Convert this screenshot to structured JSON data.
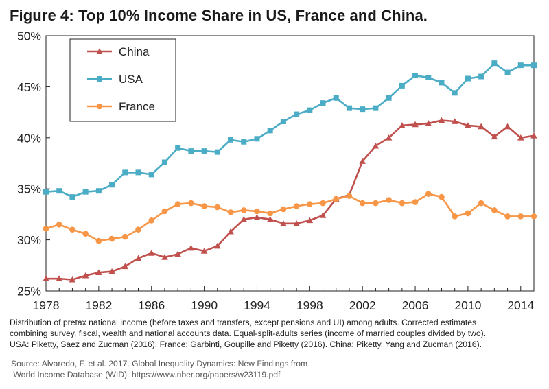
{
  "figure_title": "Figure 4: Top 10% Income Share in US, France and China.",
  "caption_lines": [
    "Distribution of pretax national income (before taxes and transfers, except pensions and UI) among adults. Corrected estimates",
    "combining survey, fiscal, wealth and national accounts data. Equal-split-adults series (income of married couples divided by two).",
    "USA: Piketty, Saez and Zucman (2016). France: Garbinti, Goupille and Piketty (2016). China: Piketty, Yang and Zucman (2016)."
  ],
  "source_lines": [
    "Source: Alvaredo, F. et al. 2017. Global Inequality Dynamics: New Findings from",
    " World Income Database (WID). https://www.nber.org/papers/w23119.pdf"
  ],
  "chart_data": {
    "type": "line",
    "title": "Figure 4: Top 10% Income Share in US, France and China.",
    "xlabel": "",
    "ylabel": "",
    "xlim": [
      1978,
      2015
    ],
    "ylim": [
      25,
      50
    ],
    "x_ticks": [
      1978,
      1982,
      1986,
      1990,
      1994,
      1998,
      2002,
      2006,
      2010,
      2014
    ],
    "y_ticks": [
      25,
      30,
      35,
      40,
      45,
      50
    ],
    "y_tick_labels": [
      "25%",
      "30%",
      "35%",
      "40%",
      "45%",
      "50%"
    ],
    "grid": false,
    "legend_position": "top-left",
    "x": [
      1978,
      1979,
      1980,
      1981,
      1982,
      1983,
      1984,
      1985,
      1986,
      1987,
      1988,
      1989,
      1990,
      1991,
      1992,
      1993,
      1994,
      1995,
      1996,
      1997,
      1998,
      1999,
      2000,
      2001,
      2002,
      2003,
      2004,
      2005,
      2006,
      2007,
      2008,
      2009,
      2010,
      2011,
      2012,
      2013,
      2014,
      2015
    ],
    "series": [
      {
        "name": "China",
        "color": "#c0504d",
        "marker": "triangle",
        "values": [
          26.2,
          26.2,
          26.1,
          26.5,
          26.8,
          26.9,
          27.4,
          28.2,
          28.7,
          28.3,
          28.6,
          29.2,
          28.9,
          29.4,
          30.8,
          32.0,
          32.2,
          32.0,
          31.6,
          31.6,
          31.9,
          32.4,
          34.0,
          34.4,
          37.7,
          39.2,
          40.0,
          41.2,
          41.3,
          41.4,
          41.7,
          41.6,
          41.2,
          41.1,
          40.1,
          41.1,
          40.0,
          40.2
        ]
      },
      {
        "name": "USA",
        "color": "#4bacc6",
        "marker": "square",
        "values": [
          34.7,
          34.8,
          34.2,
          34.7,
          34.8,
          35.4,
          36.6,
          36.6,
          36.4,
          37.6,
          39.0,
          38.7,
          38.7,
          38.6,
          39.8,
          39.6,
          39.9,
          40.7,
          41.6,
          42.3,
          42.7,
          43.4,
          43.9,
          42.9,
          42.8,
          42.9,
          43.9,
          45.1,
          46.1,
          45.9,
          45.4,
          44.4,
          45.8,
          46.0,
          47.3,
          46.4,
          47.1,
          47.1
        ]
      },
      {
        "name": "France",
        "color": "#f79646",
        "marker": "circle",
        "values": [
          31.1,
          31.5,
          31.0,
          30.6,
          29.9,
          30.1,
          30.3,
          31.0,
          31.9,
          32.8,
          33.5,
          33.6,
          33.3,
          33.2,
          32.7,
          32.9,
          32.8,
          32.6,
          33.0,
          33.3,
          33.5,
          33.6,
          34.0,
          34.3,
          33.6,
          33.6,
          33.9,
          33.6,
          33.7,
          34.5,
          34.2,
          32.3,
          32.6,
          33.6,
          32.9,
          32.3,
          32.3,
          32.3
        ]
      }
    ]
  }
}
